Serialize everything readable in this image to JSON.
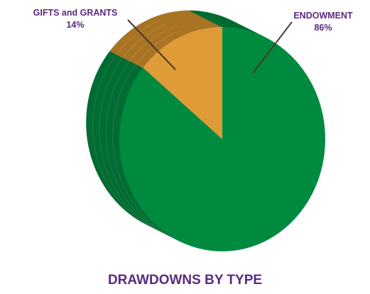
{
  "chart_data": {
    "type": "pie",
    "title": "DRAWDOWNS BY TYPE",
    "slices": [
      {
        "label": "ENDOWMENT",
        "value": 86,
        "percent_label": "86%",
        "color": "#008A40",
        "side_color": "#006B32"
      },
      {
        "label": "GIFTS and GRANTS",
        "value": 14,
        "percent_label": "14%",
        "color": "#DF9B38",
        "side_color": "#A87424"
      }
    ],
    "label_color": "#5A2A7F",
    "leader_color": "#4A3A2A",
    "title_color": "#5A2A7F"
  }
}
